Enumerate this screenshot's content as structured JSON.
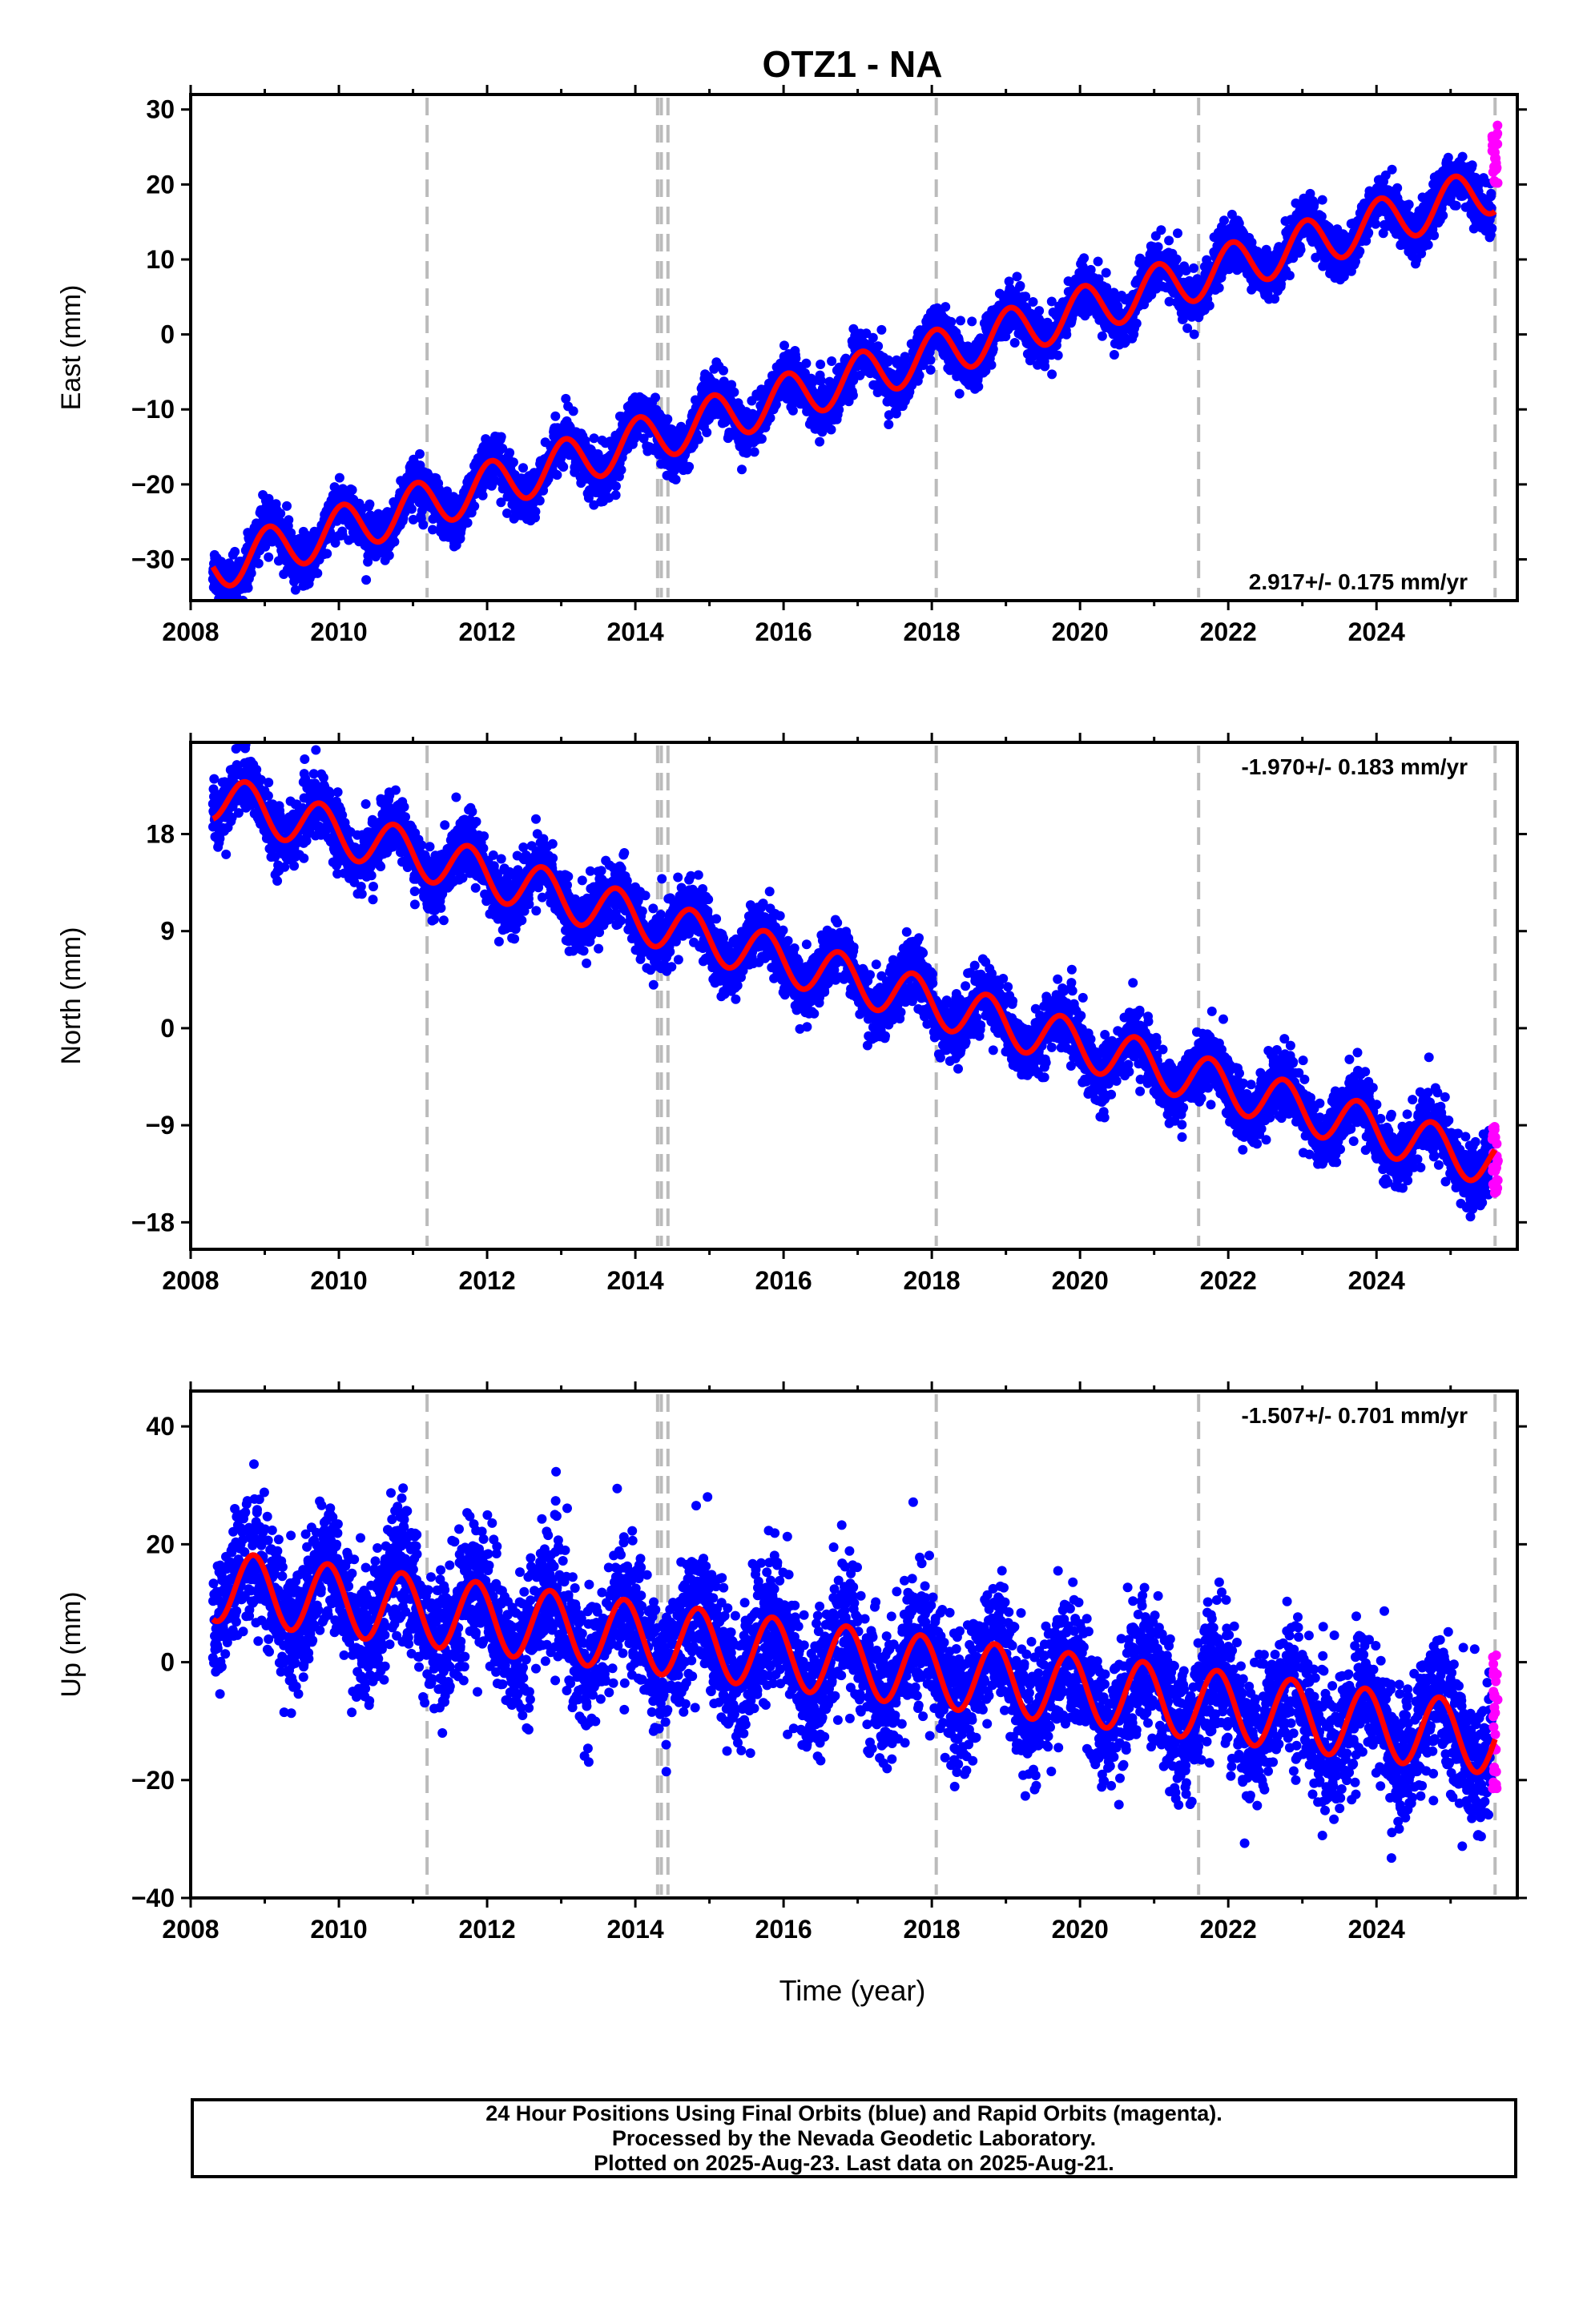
{
  "title": "OTZ1 - NA",
  "xlabel": "Time (year)",
  "footer": {
    "line1": "24 Hour Positions Using Final Orbits (blue) and Rapid Orbits (magenta).",
    "line2": "Processed by the Nevada Geodetic Laboratory.",
    "line3": "Plotted on 2025-Aug-23. Last data on 2025-Aug-21."
  },
  "colors": {
    "final": "#0000ff",
    "rapid": "#ff00ff",
    "model": "#ff0000",
    "event_lines": "#bbbbbb"
  },
  "chart_data": [
    {
      "type": "scatter",
      "panel": "east",
      "ylabel": "East (mm)",
      "xlim": [
        2008,
        2025.9
      ],
      "ylim": [
        -35.5,
        32
      ],
      "xticks": [
        2008,
        2010,
        2012,
        2014,
        2016,
        2018,
        2020,
        2022,
        2024
      ],
      "yticks": [
        -30,
        -20,
        -10,
        0,
        10,
        20,
        30
      ],
      "rate_label": "2.917+/- 0.175 mm/yr",
      "rate_position": "bottom-right",
      "event_lines": [
        2011.19,
        2014.3,
        2014.35,
        2014.44,
        2018.06,
        2021.6,
        2025.6
      ],
      "model": {
        "rate": 2.917,
        "y_at_2008_3": -31.0,
        "annual_amplitude": 3.2,
        "annual_phase": 2008.8,
        "noise": 1.6
      },
      "rapid": {
        "x_range": [
          2025.56,
          2025.64
        ],
        "y_range": [
          20,
          28
        ]
      }
    },
    {
      "type": "scatter",
      "panel": "north",
      "ylabel": "North (mm)",
      "xlim": [
        2008,
        2025.9
      ],
      "ylim": [
        -20.5,
        26.5
      ],
      "xticks": [
        2008,
        2010,
        2012,
        2014,
        2016,
        2018,
        2020,
        2022,
        2024
      ],
      "yticks": [
        -18,
        -9,
        0,
        9,
        18
      ],
      "rate_label": "-1.970+/- 0.183 mm/yr",
      "rate_position": "top-right",
      "event_lines": [
        2011.19,
        2014.3,
        2014.35,
        2014.44,
        2018.06,
        2021.6,
        2025.6
      ],
      "model": {
        "rate": -1.97,
        "y_at_2008_3": 21.5,
        "annual_amplitude": 2.2,
        "annual_phase": 2008.5,
        "noise": 1.4
      },
      "rapid": {
        "x_range": [
          2025.56,
          2025.64
        ],
        "y_range": [
          -16,
          -9
        ]
      }
    },
    {
      "type": "scatter",
      "panel": "up",
      "ylabel": "Up (mm)",
      "xlim": [
        2008,
        2025.9
      ],
      "ylim": [
        -40,
        46
      ],
      "xticks": [
        2008,
        2010,
        2012,
        2014,
        2016,
        2018,
        2020,
        2022,
        2024
      ],
      "yticks": [
        -40,
        -20,
        0,
        20,
        40
      ],
      "rate_label": "-1.507+/- 0.701 mm/yr",
      "rate_position": "top-right",
      "event_lines": [
        2011.19,
        2014.3,
        2014.35,
        2014.44,
        2018.06,
        2021.6,
        2025.6
      ],
      "model": {
        "rate": -1.507,
        "y_at_2008_3": 13.0,
        "annual_amplitude": 6.0,
        "annual_phase": 2008.6,
        "noise": 5.5
      },
      "rapid": {
        "x_range": [
          2025.56,
          2025.64
        ],
        "y_range": [
          -22,
          3
        ]
      }
    }
  ]
}
